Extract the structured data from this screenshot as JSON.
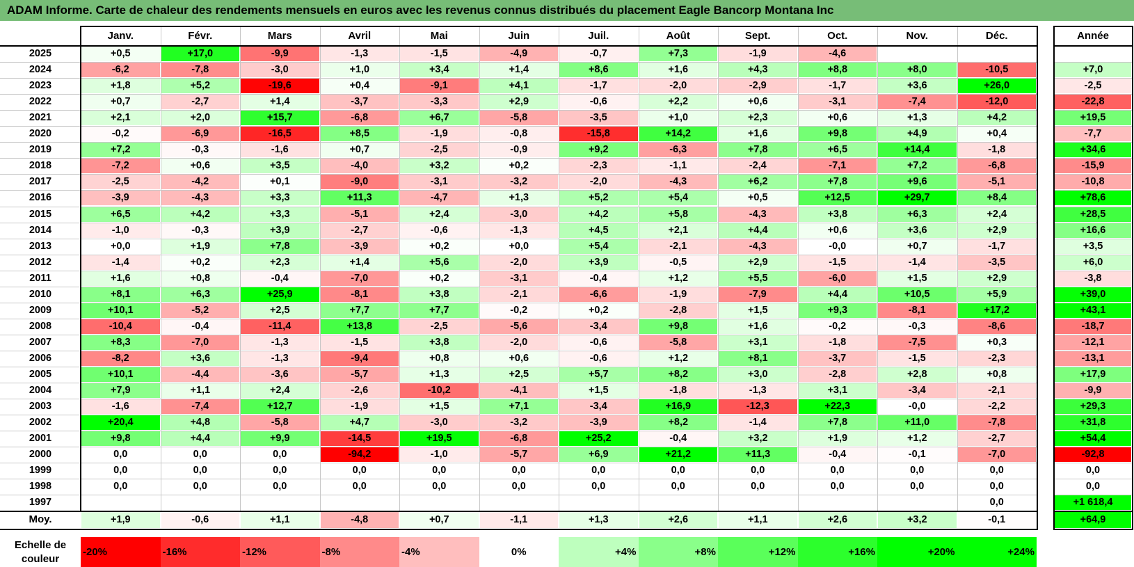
{
  "title": "ADAM Informe. Carte de chaleur des rendements mensuels en euros avec les revenus connus distribués du placement Eagle Bancorp Montana Inc",
  "chart_data": {
    "type": "heatmap",
    "months": [
      "Janv.",
      "Févr.",
      "Mars",
      "Avril",
      "Mai",
      "Juin",
      "Juil.",
      "Août",
      "Sept.",
      "Oct.",
      "Nov.",
      "Déc."
    ],
    "year_header": "Année",
    "avg_label": "Moy.",
    "rows": [
      {
        "year": "2025",
        "values": [
          "+0,5",
          "+17,0",
          "-9,9",
          "-1,3",
          "-1,5",
          "-4,9",
          "-0,7",
          "+7,3",
          "-1,9",
          "-4,6",
          "",
          ""
        ],
        "total": ""
      },
      {
        "year": "2024",
        "values": [
          "-6,2",
          "-7,8",
          "-3,0",
          "+1,0",
          "+3,4",
          "+1,4",
          "+8,6",
          "+1,6",
          "+4,3",
          "+8,8",
          "+8,0",
          "-10,5"
        ],
        "total": "+7,0"
      },
      {
        "year": "2023",
        "values": [
          "+1,8",
          "+5,2",
          "-19,6",
          "+0,4",
          "-9,1",
          "+4,1",
          "-1,7",
          "-2,0",
          "-2,9",
          "-1,7",
          "+3,6",
          "+26,0"
        ],
        "total": "-2,5"
      },
      {
        "year": "2022",
        "values": [
          "+0,7",
          "-2,7",
          "+1,4",
          "-3,7",
          "-3,3",
          "+2,9",
          "-0,6",
          "+2,2",
          "+0,6",
          "-3,1",
          "-7,4",
          "-12,0"
        ],
        "total": "-22,8"
      },
      {
        "year": "2021",
        "values": [
          "+2,1",
          "+2,0",
          "+15,7",
          "-6,8",
          "+6,7",
          "-5,8",
          "-3,5",
          "+1,0",
          "+2,3",
          "+0,6",
          "+1,3",
          "+4,2"
        ],
        "total": "+19,5"
      },
      {
        "year": "2020",
        "values": [
          "-0,2",
          "-6,9",
          "-16,5",
          "+8,5",
          "-1,9",
          "-0,8",
          "-15,8",
          "+14,2",
          "+1,6",
          "+9,8",
          "+4,9",
          "+0,4"
        ],
        "total": "-7,7"
      },
      {
        "year": "2019",
        "values": [
          "+7,2",
          "-0,3",
          "-1,6",
          "+0,7",
          "-2,5",
          "-0,9",
          "+9,2",
          "-6,3",
          "+7,8",
          "+6,5",
          "+14,4",
          "-1,8"
        ],
        "total": "+34,6"
      },
      {
        "year": "2018",
        "values": [
          "-7,2",
          "+0,6",
          "+3,5",
          "-4,0",
          "+3,2",
          "+0,2",
          "-2,3",
          "-1,1",
          "-2,4",
          "-7,1",
          "+7,2",
          "-6,8"
        ],
        "total": "-15,9"
      },
      {
        "year": "2017",
        "values": [
          "-2,5",
          "-4,2",
          "+0,1",
          "-9,0",
          "-3,1",
          "-3,2",
          "-2,0",
          "-4,3",
          "+6,2",
          "+7,8",
          "+9,6",
          "-5,1"
        ],
        "total": "-10,8"
      },
      {
        "year": "2016",
        "values": [
          "-3,9",
          "-4,3",
          "+3,3",
          "+11,3",
          "-4,7",
          "+1,3",
          "+5,2",
          "+5,4",
          "+0,5",
          "+12,5",
          "+29,7",
          "+8,4"
        ],
        "total": "+78,6"
      },
      {
        "year": "2015",
        "values": [
          "+6,5",
          "+4,2",
          "+3,3",
          "-5,1",
          "+2,4",
          "-3,0",
          "+4,2",
          "+5,8",
          "-4,3",
          "+3,8",
          "+6,3",
          "+2,4"
        ],
        "total": "+28,5"
      },
      {
        "year": "2014",
        "values": [
          "-1,0",
          "-0,3",
          "+3,9",
          "-2,7",
          "-0,6",
          "-1,3",
          "+4,5",
          "+2,1",
          "+4,4",
          "+0,6",
          "+3,6",
          "+2,9"
        ],
        "total": "+16,6"
      },
      {
        "year": "2013",
        "values": [
          "+0,0",
          "+1,9",
          "+7,8",
          "-3,9",
          "+0,2",
          "+0,0",
          "+5,4",
          "-2,1",
          "-4,3",
          "-0,0",
          "+0,7",
          "-1,7"
        ],
        "total": "+3,5"
      },
      {
        "year": "2012",
        "values": [
          "-1,4",
          "+0,2",
          "+2,3",
          "+1,4",
          "+5,6",
          "-2,0",
          "+3,9",
          "-0,5",
          "+2,9",
          "-1,5",
          "-1,4",
          "-3,5"
        ],
        "total": "+6,0"
      },
      {
        "year": "2011",
        "values": [
          "+1,6",
          "+0,8",
          "-0,4",
          "-7,0",
          "+0,2",
          "-3,1",
          "-0,4",
          "+1,2",
          "+5,5",
          "-6,0",
          "+1,5",
          "+2,9"
        ],
        "total": "-3,8"
      },
      {
        "year": "2010",
        "values": [
          "+8,1",
          "+6,3",
          "+25,9",
          "-8,1",
          "+3,8",
          "-2,1",
          "-6,6",
          "-1,9",
          "-7,9",
          "+4,4",
          "+10,5",
          "+5,9"
        ],
        "total": "+39,0"
      },
      {
        "year": "2009",
        "values": [
          "+10,1",
          "-5,2",
          "+2,5",
          "+7,7",
          "+7,7",
          "-0,2",
          "+0,2",
          "-2,8",
          "+1,5",
          "+9,3",
          "-8,1",
          "+17,2"
        ],
        "total": "+43,1"
      },
      {
        "year": "2008",
        "values": [
          "-10,4",
          "-0,4",
          "-11,4",
          "+13,8",
          "-2,5",
          "-5,6",
          "-3,4",
          "+9,8",
          "+1,6",
          "-0,2",
          "-0,3",
          "-8,6"
        ],
        "total": "-18,7"
      },
      {
        "year": "2007",
        "values": [
          "+8,3",
          "-7,0",
          "-1,3",
          "-1,5",
          "+3,8",
          "-2,0",
          "-0,6",
          "-5,8",
          "+3,1",
          "-1,8",
          "-7,5",
          "+0,3"
        ],
        "total": "-12,1"
      },
      {
        "year": "2006",
        "values": [
          "-8,2",
          "+3,6",
          "-1,3",
          "-9,4",
          "+0,8",
          "+0,6",
          "-0,6",
          "+1,2",
          "+8,1",
          "-3,7",
          "-1,5",
          "-2,3"
        ],
        "total": "-13,1"
      },
      {
        "year": "2005",
        "values": [
          "+10,1",
          "-4,4",
          "-3,6",
          "-5,7",
          "+1,3",
          "+2,5",
          "+5,7",
          "+8,2",
          "+3,0",
          "-2,8",
          "+2,8",
          "+0,8"
        ],
        "total": "+17,9"
      },
      {
        "year": "2004",
        "values": [
          "+7,9",
          "+1,1",
          "+2,4",
          "-2,6",
          "-10,2",
          "-4,1",
          "+1,5",
          "-1,8",
          "-1,3",
          "+3,1",
          "-3,4",
          "-2,1"
        ],
        "total": "-9,9"
      },
      {
        "year": "2003",
        "values": [
          "-1,6",
          "-7,4",
          "+12,7",
          "-1,9",
          "+1,5",
          "+7,1",
          "-3,4",
          "+16,9",
          "-12,3",
          "+22,3",
          "-0,0",
          "-2,2"
        ],
        "total": "+29,3"
      },
      {
        "year": "2002",
        "values": [
          "+20,4",
          "+4,8",
          "-5,8",
          "+4,7",
          "-3,0",
          "-3,2",
          "-3,9",
          "+8,2",
          "-1,4",
          "+7,8",
          "+11,0",
          "-7,8"
        ],
        "total": "+31,8"
      },
      {
        "year": "2001",
        "values": [
          "+9,8",
          "+4,4",
          "+9,9",
          "-14,5",
          "+19,5",
          "-6,8",
          "+25,2",
          "-0,4",
          "+3,2",
          "+1,9",
          "+1,2",
          "-2,7"
        ],
        "total": "+54,4"
      },
      {
        "year": "2000",
        "values": [
          "0,0",
          "0,0",
          "0,0",
          "-94,2",
          "-1,0",
          "-5,7",
          "+6,9",
          "+21,2",
          "+11,3",
          "-0,4",
          "-0,1",
          "-7,0"
        ],
        "total": "-92,8"
      },
      {
        "year": "1999",
        "values": [
          "0,0",
          "0,0",
          "0,0",
          "0,0",
          "0,0",
          "0,0",
          "0,0",
          "0,0",
          "0,0",
          "0,0",
          "0,0",
          "0,0"
        ],
        "total": "0,0"
      },
      {
        "year": "1998",
        "values": [
          "0,0",
          "0,0",
          "0,0",
          "0,0",
          "0,0",
          "0,0",
          "0,0",
          "0,0",
          "0,0",
          "0,0",
          "0,0",
          "0,0"
        ],
        "total": "0,0"
      },
      {
        "year": "1997",
        "values": [
          "",
          "",
          "",
          "",
          "",
          "",
          "",
          "",
          "",
          "",
          "",
          "0,0"
        ],
        "total": "+1 618,4"
      }
    ],
    "averages": [
      "+1,9",
      "-0,6",
      "+1,1",
      "-4,8",
      "+0,7",
      "-1,1",
      "+1,3",
      "+2,6",
      "+1,1",
      "+2,6",
      "+3,2",
      "-0,1"
    ],
    "average_total": "+64,9",
    "scale_label": "Echelle de couleur",
    "scale": [
      "-20%",
      "-16%",
      "-12%",
      "-8%",
      "-4%",
      "0%",
      "+4%",
      "+8%",
      "+12%",
      "+16%",
      "+20%",
      "+24%"
    ],
    "colors": {
      "negative_max": "#ff0000",
      "neutral": "#ffffff",
      "positive_max": "#00ff00",
      "title_bar": "#77bd77"
    }
  }
}
